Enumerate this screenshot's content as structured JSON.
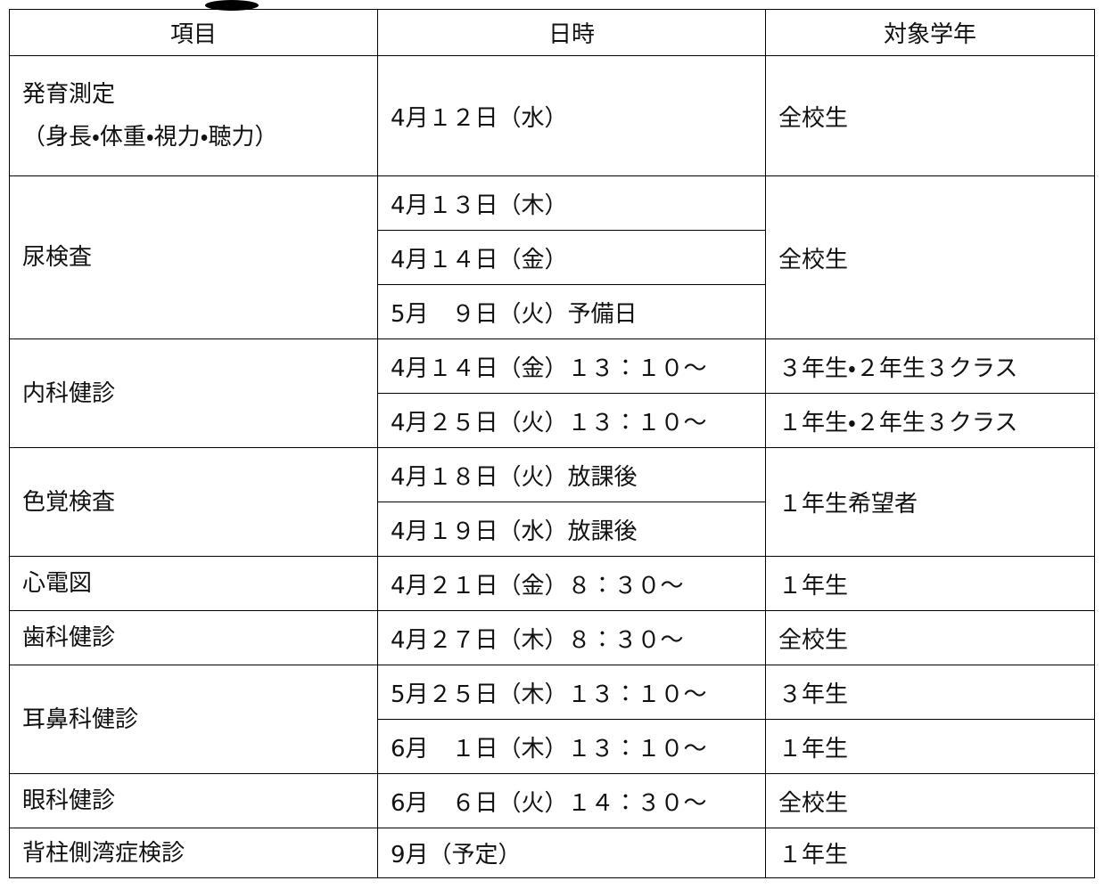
{
  "table": {
    "header": [
      "項目",
      "日時",
      "対象学年"
    ],
    "groups": [
      {
        "item": [
          "発育測定",
          "（身長・体重・視力・聴力）"
        ],
        "dates": [
          "4月１２日（水）"
        ],
        "targets": [
          "全校生"
        ]
      },
      {
        "item": [
          "尿検査"
        ],
        "dates": [
          "4月１３日（木）",
          "4月１４日（金）",
          "5月　９日（火）予備日"
        ],
        "targets": [
          "全校生"
        ]
      },
      {
        "item": [
          "内科健診"
        ],
        "dates": [
          "4月１４日（金）１３：１０～",
          "4月２５日（火）１３：１０～"
        ],
        "targets": [
          "３年生・２年生３クラス",
          "１年生・２年生３クラス"
        ]
      },
      {
        "item": [
          "色覚検査"
        ],
        "dates": [
          "4月１８日（火）放課後",
          "4月１９日（水）放課後"
        ],
        "targets": [
          "１年生希望者"
        ]
      },
      {
        "item": [
          "心電図"
        ],
        "dates": [
          "4月２１日（金）８：３０～"
        ],
        "targets": [
          "１年生"
        ]
      },
      {
        "item": [
          "歯科健診"
        ],
        "dates": [
          "4月２７日（木）８：３０～"
        ],
        "targets": [
          "全校生"
        ]
      },
      {
        "item": [
          "耳鼻科健診"
        ],
        "dates": [
          "5月２５日（木）１３：１０～",
          "6月　１日（木）１３：１０～"
        ],
        "targets": [
          "３年生",
          "１年生"
        ]
      },
      {
        "item": [
          "眼科健診"
        ],
        "dates": [
          "6月　６日（火）１４：３０～"
        ],
        "targets": [
          "全校生"
        ]
      },
      {
        "item": [
          "背柱側湾症検診"
        ],
        "dates": [
          "9月（予定）"
        ],
        "targets": [
          "１年生"
        ]
      }
    ]
  }
}
